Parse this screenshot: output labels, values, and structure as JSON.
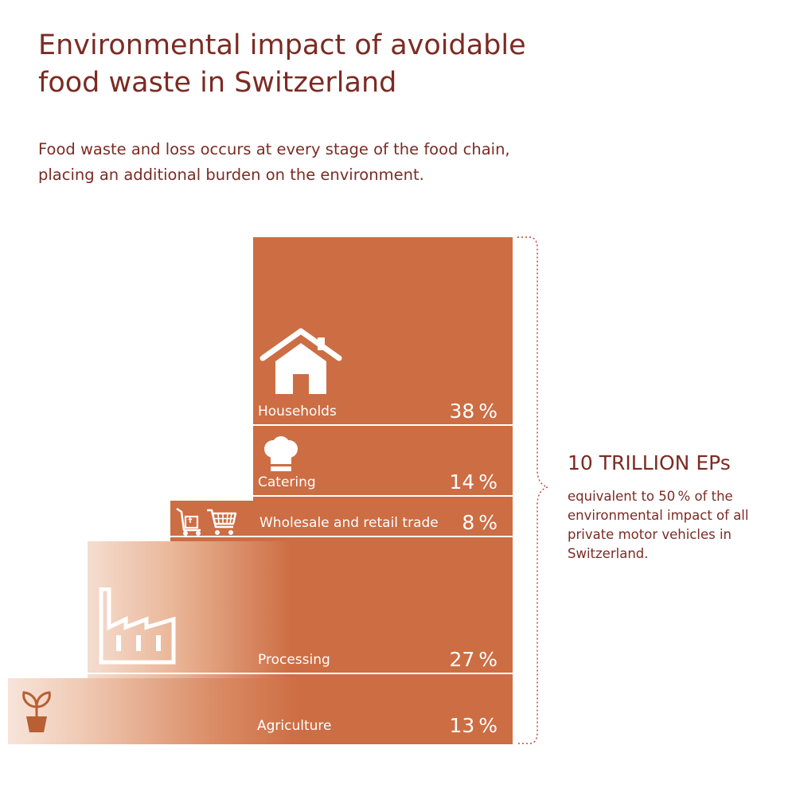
{
  "title_line1": "Environmental impact of avoidable",
  "title_line2": "food waste in Switzerland",
  "subtitle_line1": "Food waste and loss occurs at every stage of the food chain,",
  "subtitle_line2": "placing an additional burden on the environment.",
  "total": {
    "value": "10 TRILLION EPs",
    "note": "equivalent to 50 % of the environmental impact of all private motor vehicles in Switzerland."
  },
  "colors": {
    "bar": "#cd6d43",
    "text": "#7b2b23",
    "bracket": "#c0453a"
  },
  "chart_data": {
    "type": "bar",
    "orientation": "stacked",
    "unit": "%",
    "categories": [
      "Households",
      "Catering",
      "Wholesale and retail trade",
      "Processing",
      "Agriculture"
    ],
    "values": [
      38,
      14,
      8,
      27,
      13
    ],
    "labels": [
      "38 %",
      "14 %",
      "8 %",
      "27 %",
      "13 %"
    ],
    "icons": [
      "house-icon",
      "chef-hat-icon",
      "cart-icon",
      "factory-icon",
      "plant-icon"
    ]
  }
}
